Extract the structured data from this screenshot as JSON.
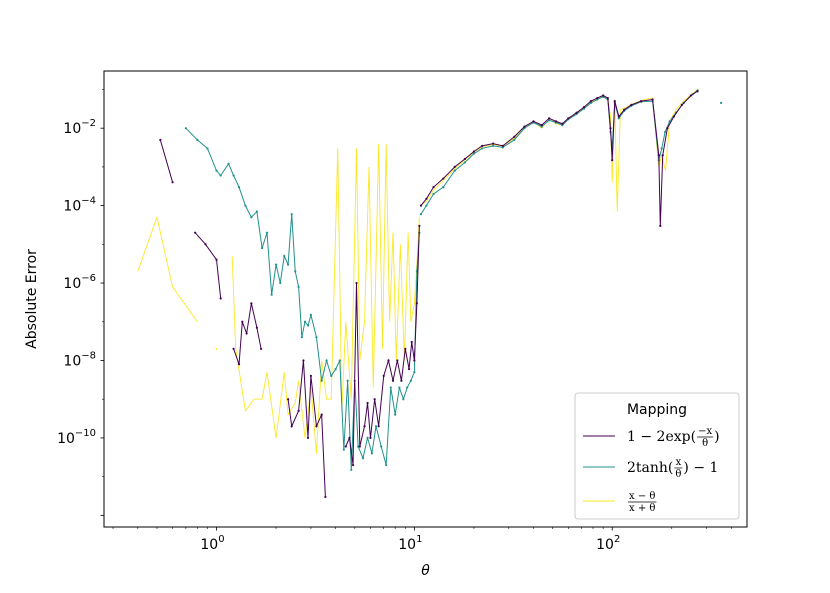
{
  "chart_data": {
    "type": "line",
    "xlabel": "θ",
    "ylabel": "Absolute Error",
    "xscale": "log",
    "yscale": "log",
    "xlim": [
      0.27,
      480
    ],
    "ylim": [
      5e-13,
      0.3
    ],
    "x_ticks": [
      {
        "value": 1,
        "base": "10",
        "exp": "0"
      },
      {
        "value": 10,
        "base": "10",
        "exp": "1"
      },
      {
        "value": 100,
        "base": "10",
        "exp": "2"
      }
    ],
    "y_ticks": [
      {
        "value": 1e-10,
        "base": "10",
        "exp": "−10"
      },
      {
        "value": 1e-08,
        "base": "10",
        "exp": "−8"
      },
      {
        "value": 1e-06,
        "base": "10",
        "exp": "−6"
      },
      {
        "value": 0.0001,
        "base": "10",
        "exp": "−4"
      },
      {
        "value": 0.01,
        "base": "10",
        "exp": "−2"
      }
    ],
    "grid": false,
    "legend": {
      "title": "Mapping",
      "placement": "lower-right",
      "entries": [
        {
          "label_parts": [
            "1 − 2exp(",
            "−x",
            "θ",
            ")"
          ]
        },
        {
          "label_parts": [
            "2tanh(",
            "x",
            "θ",
            ") − 1"
          ]
        },
        {
          "label_parts": [
            "",
            "x − θ",
            "x + θ",
            ""
          ]
        }
      ]
    },
    "series": [
      {
        "name": "1 − 2exp(−x/θ)",
        "color": "#440154",
        "segments": [
          [
            [
              0.52,
              0.005
            ],
            [
              0.6,
              0.0004
            ]
          ],
          [
            [
              0.78,
              2e-05
            ],
            [
              0.88,
              1e-05
            ],
            [
              1.0,
              4e-06
            ],
            [
              1.05,
              4e-07
            ]
          ],
          [
            [
              1.22,
              2e-08
            ],
            [
              1.3,
              8e-09
            ],
            [
              1.35,
              1e-07
            ],
            [
              1.42,
              5e-08
            ],
            [
              1.5,
              3e-07
            ],
            [
              1.6,
              7e-08
            ],
            [
              1.68,
              2e-08
            ]
          ],
          [
            [
              2.3,
              1e-09
            ],
            [
              2.4,
              2e-10
            ],
            [
              2.6,
              5e-10
            ],
            [
              2.75,
              1e-08
            ],
            [
              2.9,
              1e-10
            ],
            [
              3.0,
              4e-09
            ],
            [
              3.2,
              2e-10
            ],
            [
              3.4,
              4e-10
            ],
            [
              3.55,
              3e-12
            ]
          ],
          [
            [
              4.5,
              6e-11
            ],
            [
              4.7,
              1e-10
            ],
            [
              4.9,
              2e-11
            ],
            [
              5.1,
              1e-06
            ],
            [
              5.3,
              6e-11
            ],
            [
              5.6,
              2e-10
            ],
            [
              5.8,
              8e-10
            ],
            [
              6.0,
              1e-10
            ],
            [
              6.3,
              1e-09
            ],
            [
              6.6,
              2e-10
            ],
            [
              7.0,
              4e-09
            ],
            [
              7.4,
              1e-08
            ],
            [
              7.8,
              3e-09
            ],
            [
              8.2,
              1e-08
            ],
            [
              8.6,
              3e-09
            ],
            [
              9.0,
              2e-08
            ],
            [
              9.4,
              6e-09
            ],
            [
              9.7,
              3e-08
            ],
            [
              10.0,
              1e-08
            ],
            [
              10.3,
              3e-07
            ],
            [
              10.6,
              3e-05
            ]
          ],
          [
            [
              10.8,
              0.0001
            ],
            [
              11.5,
              0.00015
            ],
            [
              12.5,
              0.0003
            ],
            [
              14,
              0.0005
            ],
            [
              16,
              0.001
            ],
            [
              18,
              0.0016
            ],
            [
              20,
              0.0025
            ],
            [
              22,
              0.0035
            ],
            [
              25,
              0.004
            ],
            [
              28,
              0.0035
            ],
            [
              32,
              0.006
            ],
            [
              36,
              0.011
            ],
            [
              40,
              0.015
            ],
            [
              44,
              0.012
            ],
            [
              48,
              0.018
            ],
            [
              52,
              0.015
            ],
            [
              56,
              0.013
            ],
            [
              60,
              0.018
            ],
            [
              66,
              0.025
            ],
            [
              72,
              0.035
            ],
            [
              78,
              0.05
            ],
            [
              84,
              0.06
            ],
            [
              90,
              0.07
            ],
            [
              95,
              0.06
            ],
            [
              98,
              0.01
            ],
            [
              100,
              0.0015
            ],
            [
              103,
              0.05
            ],
            [
              108,
              0.02
            ],
            [
              115,
              0.03
            ],
            [
              125,
              0.04
            ],
            [
              140,
              0.05
            ],
            [
              160,
              0.055
            ],
            [
              172,
              0.002
            ],
            [
              175,
              3e-05
            ],
            [
              180,
              0.002
            ],
            [
              190,
              0.01
            ],
            [
              205,
              0.02
            ],
            [
              225,
              0.04
            ],
            [
              250,
              0.07
            ],
            [
              270,
              0.09
            ]
          ]
        ]
      },
      {
        "name": "2tanh(x/θ) − 1",
        "color": "#21918c",
        "segments": [
          [
            [
              0.7,
              0.01
            ],
            [
              0.8,
              0.005
            ],
            [
              0.9,
              0.003
            ],
            [
              1.0,
              0.0008
            ],
            [
              1.05,
              0.0006
            ],
            [
              1.15,
              0.0012
            ],
            [
              1.22,
              0.0006
            ],
            [
              1.3,
              0.0003
            ],
            [
              1.4,
              0.0001
            ],
            [
              1.5,
              5e-05
            ],
            [
              1.6,
              7e-05
            ],
            [
              1.7,
              8e-06
            ],
            [
              1.8,
              2e-05
            ],
            [
              1.9,
              5e-07
            ],
            [
              2.0,
              3e-06
            ],
            [
              2.1,
              1e-06
            ],
            [
              2.2,
              5e-06
            ],
            [
              2.3,
              3e-06
            ],
            [
              2.4,
              6e-05
            ],
            [
              2.5,
              2e-06
            ],
            [
              2.6,
              8e-07
            ],
            [
              2.7,
              4e-08
            ],
            [
              2.8,
              1e-07
            ],
            [
              2.9,
              8e-08
            ],
            [
              3.0,
              1.5e-07
            ],
            [
              3.2,
              4e-08
            ],
            [
              3.4,
              3e-09
            ],
            [
              3.6,
              1e-08
            ],
            [
              3.8,
              4e-09
            ],
            [
              4.0,
              6e-09
            ],
            [
              4.2,
              1e-08
            ],
            [
              4.4,
              5e-11
            ],
            [
              4.6,
              3e-09
            ],
            [
              4.8,
              1.5e-11
            ],
            [
              5.0,
              3e-09
            ],
            [
              5.2,
              6e-11
            ],
            [
              5.5,
              3e-11
            ],
            [
              5.8,
              1e-10
            ],
            [
              6.1,
              4e-11
            ],
            [
              6.4,
              2e-10
            ],
            [
              6.8,
              6e-11
            ],
            [
              7.2,
              2e-11
            ],
            [
              7.6,
              2e-09
            ],
            [
              8.0,
              4e-10
            ],
            [
              8.4,
              2e-09
            ],
            [
              8.8,
              1e-09
            ],
            [
              9.2,
              2e-09
            ],
            [
              9.6,
              3e-09
            ],
            [
              10.0,
              5e-09
            ],
            [
              10.3,
              2e-06
            ],
            [
              10.6,
              2e-05
            ]
          ],
          [
            [
              10.8,
              6e-05
            ],
            [
              11.5,
              0.0001
            ],
            [
              12.5,
              0.0002
            ],
            [
              14,
              0.0003
            ],
            [
              16,
              0.0008
            ],
            [
              18,
              0.0013
            ],
            [
              20,
              0.0022
            ],
            [
              22,
              0.003
            ],
            [
              25,
              0.0035
            ],
            [
              28,
              0.0032
            ],
            [
              32,
              0.005
            ],
            [
              36,
              0.01
            ],
            [
              40,
              0.014
            ],
            [
              44,
              0.011
            ],
            [
              48,
              0.016
            ],
            [
              52,
              0.014
            ],
            [
              56,
              0.012
            ],
            [
              60,
              0.017
            ],
            [
              66,
              0.023
            ],
            [
              72,
              0.032
            ],
            [
              78,
              0.045
            ],
            [
              84,
              0.055
            ],
            [
              90,
              0.065
            ],
            [
              95,
              0.055
            ],
            [
              98,
              0.008
            ],
            [
              100,
              0.003
            ],
            [
              103,
              0.045
            ],
            [
              108,
              0.018
            ],
            [
              115,
              0.028
            ],
            [
              125,
              0.038
            ],
            [
              140,
              0.048
            ],
            [
              160,
              0.05
            ],
            [
              172,
              0.0015
            ],
            [
              178,
              0.003
            ],
            [
              185,
              0.008
            ],
            [
              195,
              0.015
            ],
            [
              210,
              0.025
            ],
            [
              230,
              0.045
            ],
            [
              255,
              0.075
            ],
            [
              270,
              0.095
            ]
          ],
          [
            [
              355,
              0.045
            ]
          ]
        ]
      },
      {
        "name": "(x − θ)/(x + θ)",
        "color": "#fde725",
        "segments": [
          [
            [
              0.4,
              2e-06
            ],
            [
              0.5,
              5e-05
            ],
            [
              0.6,
              8e-07
            ],
            [
              0.8,
              1e-07
            ]
          ],
          [
            [
              1.0,
              2e-08
            ]
          ],
          [
            [
              1.2,
              5e-06
            ],
            [
              1.25,
              2e-08
            ],
            [
              1.4,
              5e-10
            ],
            [
              1.55,
              1e-09
            ],
            [
              1.7,
              1e-09
            ],
            [
              1.8,
              5e-09
            ],
            [
              2.0,
              1e-10
            ],
            [
              2.2,
              5e-09
            ],
            [
              2.3,
              4e-10
            ],
            [
              2.5,
              8e-10
            ],
            [
              2.6,
              3e-09
            ],
            [
              2.8,
              1e-10
            ],
            [
              3.0,
              2e-09
            ],
            [
              3.2,
              4e-11
            ],
            [
              3.4,
              1e-08
            ],
            [
              3.6,
              1e-09
            ],
            [
              3.8,
              1e-09
            ],
            [
              4.1,
              0.003
            ],
            [
              4.3,
              5e-10
            ],
            [
              4.5,
              1e-07
            ],
            [
              4.8,
              1e-09
            ],
            [
              5.1,
              0.003
            ],
            [
              5.3,
              1e-08
            ],
            [
              5.6,
              1e-07
            ],
            [
              5.9,
              0.001
            ],
            [
              6.2,
              2e-09
            ],
            [
              6.6,
              0.004
            ],
            [
              6.9,
              2e-08
            ],
            [
              7.2,
              0.004
            ],
            [
              7.5,
              1e-07
            ],
            [
              7.8,
              2e-05
            ],
            [
              8.1,
              1e-08
            ],
            [
              8.5,
              1e-05
            ],
            [
              8.9,
              1e-08
            ],
            [
              9.3,
              2e-05
            ],
            [
              9.6,
              1e-07
            ],
            [
              10.0,
              3e-07
            ],
            [
              10.3,
              3e-06
            ],
            [
              10.6,
              5e-05
            ]
          ],
          [
            [
              10.8,
              0.0001
            ],
            [
              11.5,
              0.00013
            ],
            [
              12.5,
              0.00025
            ],
            [
              14,
              0.00045
            ],
            [
              16,
              0.0009
            ],
            [
              18,
              0.0015
            ],
            [
              20,
              0.0024
            ],
            [
              22,
              0.0033
            ],
            [
              25,
              0.0038
            ],
            [
              28,
              0.0034
            ],
            [
              32,
              0.0055
            ],
            [
              36,
              0.01
            ],
            [
              40,
              0.015
            ],
            [
              44,
              0.01
            ],
            [
              48,
              0.017
            ],
            [
              52,
              0.013
            ],
            [
              56,
              0.012
            ],
            [
              60,
              0.017
            ],
            [
              66,
              0.024
            ],
            [
              72,
              0.033
            ],
            [
              78,
              0.047
            ],
            [
              84,
              0.058
            ],
            [
              90,
              0.068
            ],
            [
              95,
              0.06
            ],
            [
              98,
              0.02
            ],
            [
              100,
              0.0004
            ],
            [
              103,
              0.055
            ],
            [
              106,
              7e-05
            ],
            [
              110,
              0.03
            ],
            [
              118,
              0.035
            ],
            [
              130,
              0.045
            ],
            [
              145,
              0.055
            ],
            [
              160,
              0.06
            ],
            [
              172,
              0.001
            ],
            [
              178,
              0.002
            ],
            [
              186,
              0.0008
            ],
            [
              195,
              0.015
            ],
            [
              210,
              0.03
            ],
            [
              230,
              0.05
            ],
            [
              255,
              0.08
            ],
            [
              270,
              0.1
            ]
          ]
        ]
      }
    ]
  }
}
